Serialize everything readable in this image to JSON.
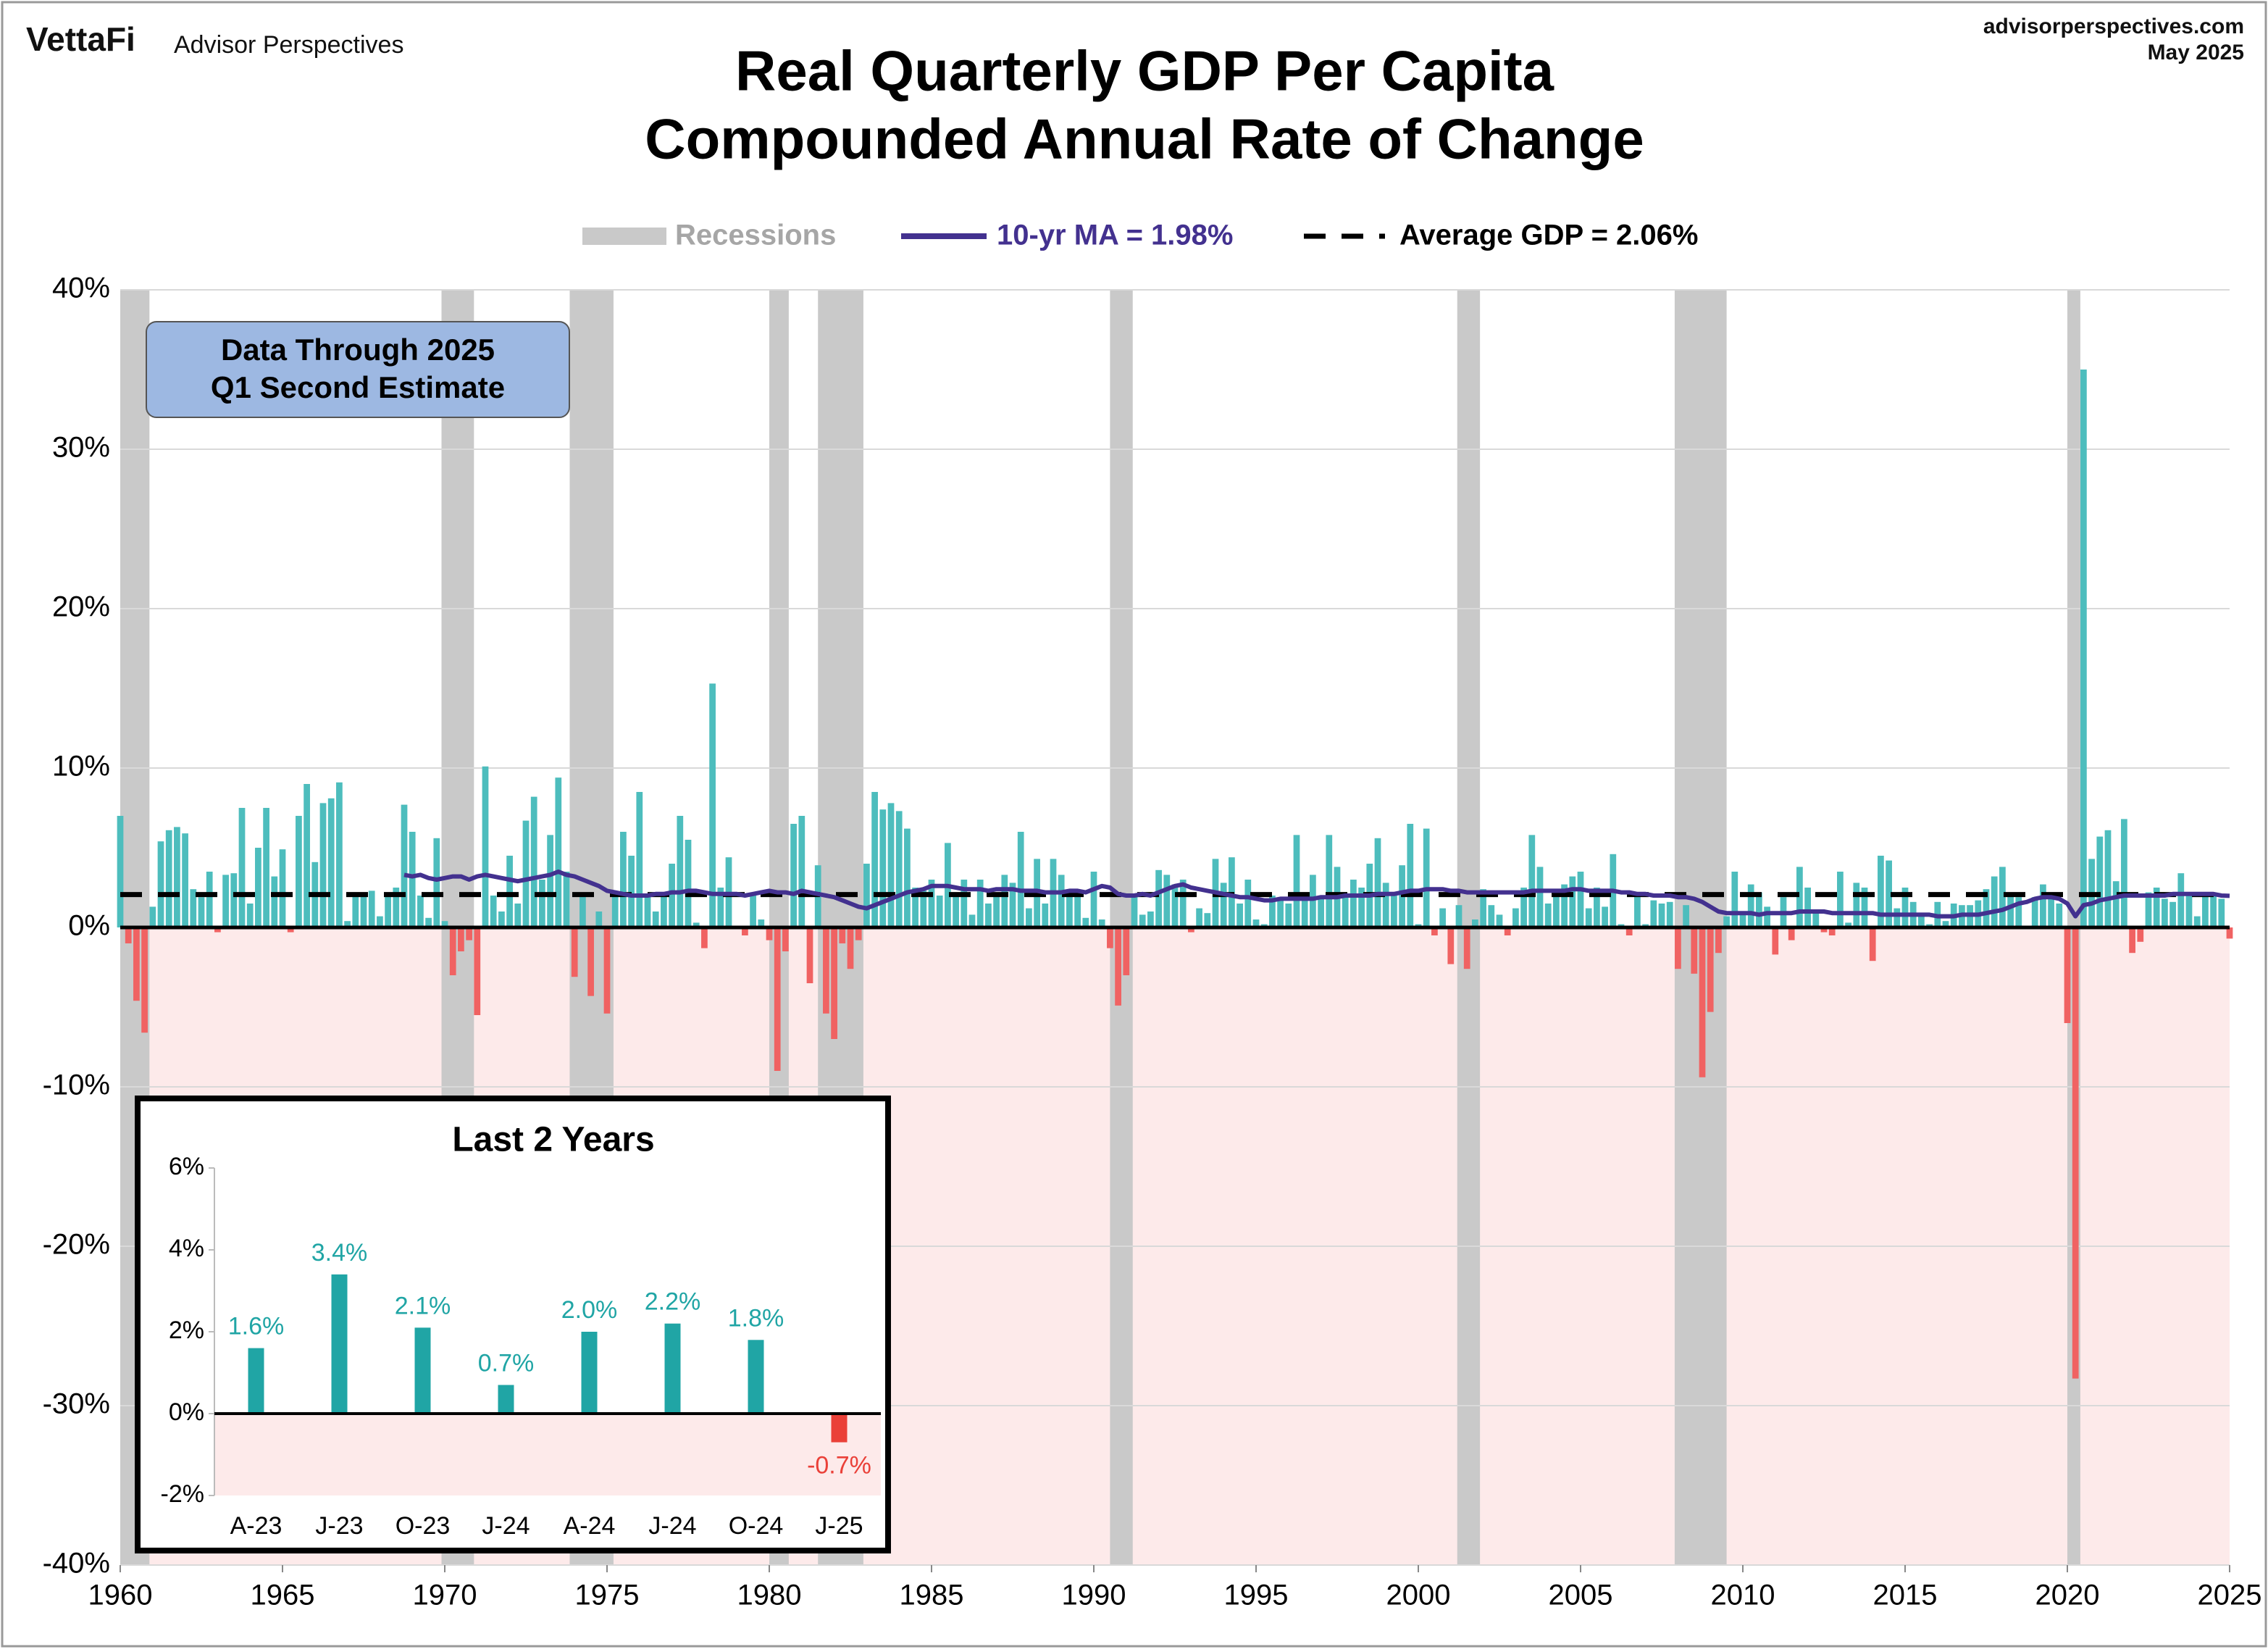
{
  "chart_data": [
    {
      "type": "bar",
      "logo": "VettaFi",
      "brand": "Advisor Perspectives",
      "site": "advisorperspectives.com",
      "date": "May 2025",
      "title": "Real Quarterly GDP Per Capita",
      "subtitle": "Compounded Annual Rate of Change",
      "note": [
        "Data Through 2025",
        "Q1 Second Estimate"
      ],
      "x": [
        1960,
        1960.25,
        1960.5,
        1960.75,
        1961,
        1961.25,
        1961.5,
        1961.75,
        1962,
        1962.25,
        1962.5,
        1962.75,
        1963,
        1963.25,
        1963.5,
        1963.75,
        1964,
        1964.25,
        1964.5,
        1964.75,
        1965,
        1965.25,
        1965.5,
        1965.75,
        1966,
        1966.25,
        1966.5,
        1966.75,
        1967,
        1967.25,
        1967.5,
        1967.75,
        1968,
        1968.25,
        1968.5,
        1968.75,
        1969,
        1969.25,
        1969.5,
        1969.75,
        1970,
        1970.25,
        1970.5,
        1970.75,
        1971,
        1971.25,
        1971.5,
        1971.75,
        1972,
        1972.25,
        1972.5,
        1972.75,
        1973,
        1973.25,
        1973.5,
        1973.75,
        1974,
        1974.25,
        1974.5,
        1974.75,
        1975,
        1975.25,
        1975.5,
        1975.75,
        1976,
        1976.25,
        1976.5,
        1976.75,
        1977,
        1977.25,
        1977.5,
        1977.75,
        1978,
        1978.25,
        1978.5,
        1978.75,
        1979,
        1979.25,
        1979.5,
        1979.75,
        1980,
        1980.25,
        1980.5,
        1980.75,
        1981,
        1981.25,
        1981.5,
        1981.75,
        1982,
        1982.25,
        1982.5,
        1982.75,
        1983,
        1983.25,
        1983.5,
        1983.75,
        1984,
        1984.25,
        1984.5,
        1984.75,
        1985,
        1985.25,
        1985.5,
        1985.75,
        1986,
        1986.25,
        1986.5,
        1986.75,
        1987,
        1987.25,
        1987.5,
        1987.75,
        1988,
        1988.25,
        1988.5,
        1988.75,
        1989,
        1989.25,
        1989.5,
        1989.75,
        1990,
        1990.25,
        1990.5,
        1990.75,
        1991,
        1991.25,
        1991.5,
        1991.75,
        1992,
        1992.25,
        1992.5,
        1992.75,
        1993,
        1993.25,
        1993.5,
        1993.75,
        1994,
        1994.25,
        1994.5,
        1994.75,
        1995,
        1995.25,
        1995.5,
        1995.75,
        1996,
        1996.25,
        1996.5,
        1996.75,
        1997,
        1997.25,
        1997.5,
        1997.75,
        1998,
        1998.25,
        1998.5,
        1998.75,
        1999,
        1999.25,
        1999.5,
        1999.75,
        2000,
        2000.25,
        2000.5,
        2000.75,
        2001,
        2001.25,
        2001.5,
        2001.75,
        2002,
        2002.25,
        2002.5,
        2002.75,
        2003,
        2003.25,
        2003.5,
        2003.75,
        2004,
        2004.25,
        2004.5,
        2004.75,
        2005,
        2005.25,
        2005.5,
        2005.75,
        2006,
        2006.25,
        2006.5,
        2006.75,
        2007,
        2007.25,
        2007.5,
        2007.75,
        2008,
        2008.25,
        2008.5,
        2008.75,
        2009,
        2009.25,
        2009.5,
        2009.75,
        2010,
        2010.25,
        2010.5,
        2010.75,
        2011,
        2011.25,
        2011.5,
        2011.75,
        2012,
        2012.25,
        2012.5,
        2012.75,
        2013,
        2013.25,
        2013.5,
        2013.75,
        2014,
        2014.25,
        2014.5,
        2014.75,
        2015,
        2015.25,
        2015.5,
        2015.75,
        2016,
        2016.25,
        2016.5,
        2016.75,
        2017,
        2017.25,
        2017.5,
        2017.75,
        2018,
        2018.25,
        2018.5,
        2018.75,
        2019,
        2019.25,
        2019.5,
        2019.75,
        2020,
        2020.25,
        2020.5,
        2020.75,
        2021,
        2021.25,
        2021.5,
        2021.75,
        2022,
        2022.25,
        2022.5,
        2022.75,
        2023,
        2023.25,
        2023.5,
        2023.75,
        2024,
        2024.25,
        2024.5,
        2024.75,
        2025
      ],
      "values": [
        7.0,
        -1.0,
        -4.6,
        -6.6,
        1.3,
        5.4,
        6.1,
        6.3,
        5.9,
        2.4,
        1.9,
        3.5,
        -0.3,
        3.3,
        3.4,
        7.5,
        1.5,
        5.0,
        7.5,
        3.2,
        4.9,
        -0.3,
        7.0,
        9.0,
        4.1,
        7.8,
        8.1,
        9.1,
        0.4,
        2.0,
        2.0,
        2.3,
        0.7,
        2.0,
        2.5,
        7.7,
        6.0,
        2.0,
        0.6,
        5.6,
        0.4,
        -3.0,
        -1.5,
        -0.8,
        -5.5,
        10.1,
        2.0,
        1.0,
        4.5,
        1.5,
        6.7,
        8.2,
        3.0,
        5.8,
        9.4,
        3.5,
        -3.1,
        2.2,
        -4.3,
        1.0,
        -5.4,
        2.0,
        6.0,
        4.5,
        8.5,
        2.0,
        1.0,
        2.0,
        4.0,
        7.0,
        5.5,
        0.3,
        -1.3,
        15.3,
        2.5,
        4.4,
        0.0,
        -0.5,
        2.0,
        0.5,
        -0.8,
        -9.0,
        -1.5,
        6.5,
        7.0,
        -3.5,
        3.9,
        -5.4,
        -7.0,
        -1.0,
        -2.6,
        -0.8,
        4.0,
        8.5,
        7.4,
        7.8,
        7.3,
        6.2,
        2.5,
        2.3,
        3.0,
        2.0,
        5.3,
        2.0,
        3.0,
        0.8,
        3.0,
        1.5,
        2.0,
        3.3,
        2.8,
        6.0,
        1.2,
        4.3,
        1.5,
        4.3,
        3.3,
        2.1,
        2.0,
        0.6,
        3.5,
        0.5,
        -1.3,
        -4.9,
        -3.0,
        2.0,
        0.8,
        1.0,
        3.6,
        3.3,
        2.7,
        3.0,
        -0.3,
        1.2,
        0.9,
        4.3,
        2.8,
        4.4,
        1.5,
        3.0,
        0.5,
        0.2,
        2.0,
        1.7,
        1.5,
        5.8,
        2.2,
        3.3,
        1.8,
        5.8,
        3.8,
        2.0,
        3.0,
        2.5,
        4.0,
        5.6,
        2.8,
        2.2,
        3.9,
        6.5,
        0.2,
        6.2,
        -0.5,
        1.2,
        -2.3,
        1.4,
        -2.6,
        0.5,
        2.4,
        1.4,
        0.8,
        -0.5,
        1.2,
        2.5,
        5.8,
        3.8,
        1.5,
        2.0,
        2.7,
        3.2,
        3.5,
        1.2,
        2.5,
        1.3,
        4.6,
        0.2,
        -0.5,
        2.2,
        0.2,
        1.7,
        1.5,
        1.6,
        -2.6,
        1.4,
        -2.9,
        -9.4,
        -5.3,
        -1.6,
        0.7,
        3.5,
        1.0,
        2.7,
        2.2,
        1.3,
        -1.7,
        1.9,
        -0.8,
        3.8,
        2.5,
        1.0,
        -0.3,
        -0.5,
        3.5,
        0.3,
        2.8,
        2.5,
        -2.1,
        4.5,
        4.2,
        1.2,
        2.5,
        1.6,
        0.8,
        0.2,
        1.6,
        0.4,
        1.5,
        1.4,
        1.4,
        1.7,
        2.4,
        3.2,
        3.8,
        2.2,
        1.9,
        0.1,
        1.9,
        2.7,
        2.1,
        1.5,
        -6.0,
        -28.3,
        35.0,
        4.3,
        5.7,
        6.1,
        2.9,
        6.8,
        -1.6,
        -0.9,
        2.2,
        2.5,
        1.8,
        1.6,
        3.4,
        2.1,
        0.7,
        2.0,
        2.2,
        1.8,
        -0.7
      ],
      "color": "#4dbdbd",
      "negative_color": "#f06262",
      "ma": {
        "name": "10-yr MA = 1.98%",
        "color": "#43318f",
        "values": [
          null,
          null,
          null,
          null,
          null,
          null,
          null,
          null,
          null,
          null,
          null,
          null,
          null,
          null,
          null,
          null,
          null,
          null,
          null,
          null,
          null,
          null,
          null,
          null,
          null,
          null,
          null,
          null,
          null,
          null,
          null,
          null,
          null,
          null,
          null,
          3.3,
          3.2,
          3.3,
          3.1,
          3.0,
          3.1,
          3.2,
          3.2,
          3.0,
          3.2,
          3.3,
          3.2,
          3.1,
          3.0,
          2.9,
          3.0,
          3.1,
          3.2,
          3.3,
          3.5,
          3.3,
          3.2,
          3.0,
          2.8,
          2.6,
          2.3,
          2.2,
          2.1,
          2.0,
          2.0,
          2.0,
          2.1,
          2.1,
          2.2,
          2.2,
          2.3,
          2.3,
          2.2,
          2.1,
          2.1,
          2.1,
          2.1,
          2.0,
          2.1,
          2.2,
          2.3,
          2.2,
          2.2,
          2.1,
          2.3,
          2.2,
          2.1,
          2.0,
          1.9,
          1.7,
          1.5,
          1.3,
          1.2,
          1.4,
          1.6,
          1.8,
          2.0,
          2.2,
          2.3,
          2.4,
          2.6,
          2.6,
          2.6,
          2.5,
          2.4,
          2.4,
          2.4,
          2.3,
          2.4,
          2.4,
          2.4,
          2.3,
          2.3,
          2.3,
          2.2,
          2.2,
          2.2,
          2.3,
          2.3,
          2.2,
          2.4,
          2.6,
          2.5,
          2.1,
          2.0,
          2.0,
          2.1,
          2.0,
          2.2,
          2.4,
          2.6,
          2.7,
          2.5,
          2.4,
          2.3,
          2.2,
          2.1,
          2.0,
          1.9,
          1.9,
          1.8,
          1.7,
          1.7,
          1.8,
          1.8,
          1.8,
          1.8,
          1.8,
          1.9,
          1.9,
          1.9,
          2.0,
          2.0,
          2.0,
          2.0,
          2.1,
          2.1,
          2.1,
          2.2,
          2.3,
          2.3,
          2.4,
          2.4,
          2.4,
          2.3,
          2.3,
          2.2,
          2.2,
          2.2,
          2.2,
          2.2,
          2.2,
          2.2,
          2.2,
          2.3,
          2.3,
          2.3,
          2.3,
          2.3,
          2.4,
          2.4,
          2.3,
          2.3,
          2.3,
          2.3,
          2.2,
          2.2,
          2.1,
          2.1,
          2.0,
          2.0,
          2.0,
          1.9,
          1.9,
          1.8,
          1.6,
          1.3,
          1.0,
          0.9,
          0.9,
          0.9,
          0.9,
          0.8,
          0.9,
          0.9,
          0.9,
          0.9,
          1.0,
          1.0,
          1.0,
          1.0,
          0.9,
          0.9,
          0.9,
          0.9,
          0.9,
          0.9,
          0.8,
          0.8,
          0.8,
          0.8,
          0.8,
          0.8,
          0.8,
          0.7,
          0.7,
          0.7,
          0.8,
          0.8,
          0.8,
          0.9,
          1.0,
          1.1,
          1.3,
          1.5,
          1.6,
          1.8,
          1.9,
          1.9,
          1.8,
          1.5,
          0.7,
          1.4,
          1.5,
          1.7,
          1.8,
          1.9,
          2.0,
          2.0,
          2.0,
          2.0,
          2.0,
          2.0,
          2.1,
          2.1,
          2.1,
          2.1,
          2.1,
          2.1,
          2.0,
          1.98
        ]
      },
      "average": {
        "name": "Average GDP = 2.06%",
        "value": 2.06,
        "color": "#000000"
      },
      "recessions": {
        "name": "Recessions",
        "color": "#c9c9c9",
        "ranges": [
          [
            1960.0,
            1960.9
          ],
          [
            1969.9,
            1970.9
          ],
          [
            1973.85,
            1975.2
          ],
          [
            1980.0,
            1980.6
          ],
          [
            1981.5,
            1982.9
          ],
          [
            1990.5,
            1991.2
          ],
          [
            2001.2,
            2001.9
          ],
          [
            2007.9,
            2009.5
          ],
          [
            2020.0,
            2020.4
          ]
        ]
      },
      "xlim": [
        1960,
        2025
      ],
      "xticks": [
        1960,
        1965,
        1970,
        1975,
        1980,
        1985,
        1990,
        1995,
        2000,
        2005,
        2010,
        2015,
        2020,
        2025
      ],
      "ylim": [
        -40,
        40
      ],
      "yticks": [
        {
          "value": 40,
          "label": "40%"
        },
        {
          "value": 30,
          "label": "30%"
        },
        {
          "value": 20,
          "label": "20%"
        },
        {
          "value": 10,
          "label": "10%"
        },
        {
          "value": 0,
          "label": "0%"
        },
        {
          "value": -10,
          "label": "-10%"
        },
        {
          "value": -20,
          "label": "-20%"
        },
        {
          "value": -30,
          "label": "-30%"
        },
        {
          "value": -40,
          "label": "-40%"
        }
      ],
      "grid": true
    },
    {
      "type": "bar",
      "title": "Last 2 Years",
      "categories": [
        "A-23",
        "J-23",
        "O-23",
        "J-24",
        "A-24",
        "J-24",
        "O-24",
        "J-25"
      ],
      "values": [
        1.6,
        3.4,
        2.1,
        0.7,
        2.0,
        2.2,
        1.8,
        -0.7
      ],
      "value_labels": [
        "1.6%",
        "3.4%",
        "2.1%",
        "0.7%",
        "2.0%",
        "2.2%",
        "1.8%",
        "-0.7%"
      ],
      "color": "#20a5a5",
      "negative_color": "#ea4038",
      "ylim": [
        -2,
        6
      ],
      "yticks": [
        {
          "value": 6,
          "label": "6%"
        },
        {
          "value": 4,
          "label": "4%"
        },
        {
          "value": 2,
          "label": "2%"
        },
        {
          "value": 0,
          "label": "0%"
        },
        {
          "value": -2,
          "label": "-2%"
        }
      ]
    }
  ]
}
